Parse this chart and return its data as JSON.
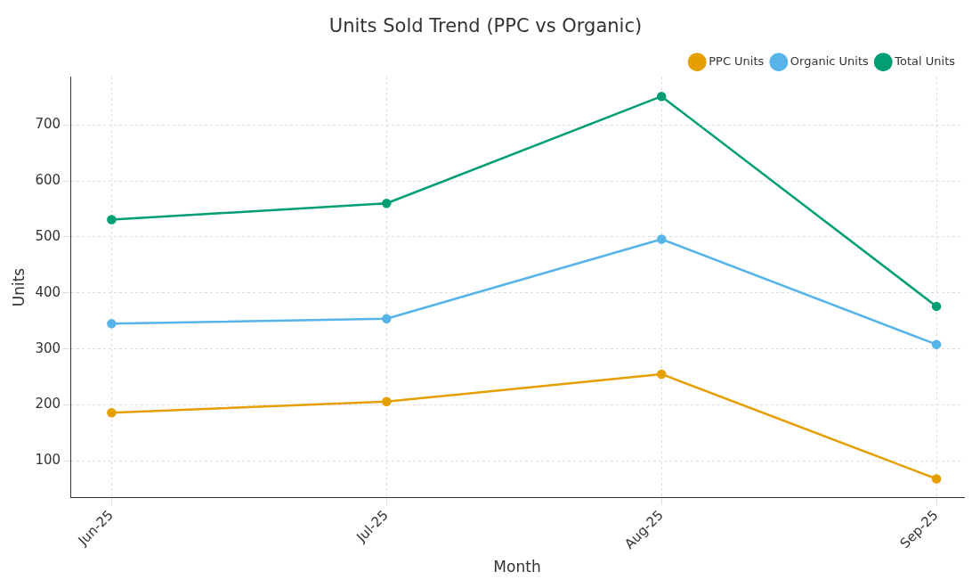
{
  "chart_data": {
    "type": "line",
    "title": "Units Sold Trend (PPC vs Organic)",
    "xlabel": "Month",
    "ylabel": "Units",
    "categories": [
      "Jun-25",
      "Jul-25",
      "Aug-25",
      "Sep-25"
    ],
    "series": [
      {
        "name": "PPC Units",
        "color": "#e69f00",
        "values": [
          186,
          206,
          255,
          68
        ]
      },
      {
        "name": "Organic Units",
        "color": "#56b4e9",
        "values": [
          345,
          354,
          496,
          308
        ]
      },
      {
        "name": "Total Units",
        "color": "#009e73",
        "values": [
          531,
          560,
          751,
          376
        ]
      }
    ],
    "ylim": [
      34,
      786
    ],
    "yticks": [
      100,
      200,
      300,
      400,
      500,
      600,
      700
    ],
    "grid": true,
    "legend": "top right",
    "marker": "circle",
    "line_style": "solid"
  }
}
